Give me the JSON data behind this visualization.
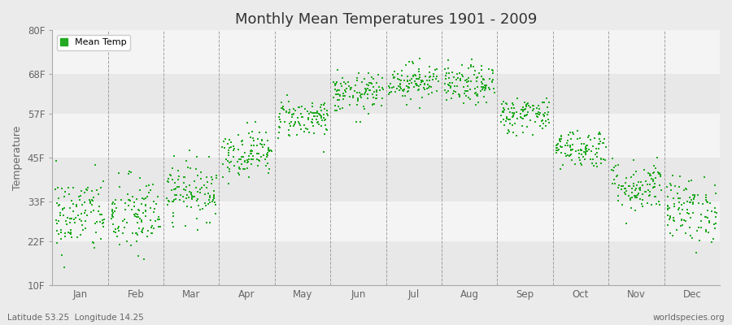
{
  "title": "Monthly Mean Temperatures 1901 - 2009",
  "ylabel": "Temperature",
  "xlabel_bottom_left": "Latitude 53.25  Longitude 14.25",
  "xlabel_bottom_right": "worldspecies.org",
  "ytick_labels": [
    "10F",
    "22F",
    "33F",
    "45F",
    "57F",
    "68F",
    "80F"
  ],
  "ytick_values": [
    10,
    22,
    33,
    45,
    57,
    68,
    80
  ],
  "ylim": [
    10,
    80
  ],
  "months": [
    "Jan",
    "Feb",
    "Mar",
    "Apr",
    "May",
    "Jun",
    "Jul",
    "Aug",
    "Sep",
    "Oct",
    "Nov",
    "Dec"
  ],
  "dot_color": "#22AA22",
  "bg_color": "#EBEBEB",
  "bg_color_alt": "#F8F8F8",
  "legend_label": "Mean Temp",
  "title_fontsize": 13,
  "axis_fontsize": 9,
  "tick_fontsize": 8.5,
  "n_years": 109,
  "seed": 42,
  "monthly_means_C": [
    -1.5,
    -1.7,
    2.2,
    8.0,
    13.3,
    17.0,
    18.9,
    18.3,
    13.8,
    8.7,
    2.9,
    -0.7
  ],
  "monthly_stds_C": [
    3.0,
    3.1,
    2.2,
    1.8,
    1.5,
    1.5,
    1.4,
    1.5,
    1.4,
    1.5,
    2.0,
    2.5
  ]
}
